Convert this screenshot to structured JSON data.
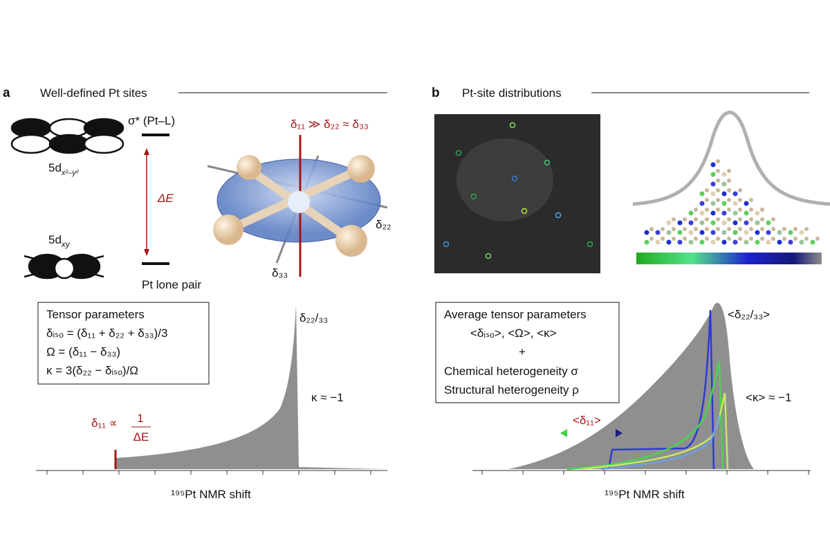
{
  "panel_a": {
    "label": "a",
    "title": "Well-defined Pt sites",
    "sigma_star": "σ* (Pt–L)",
    "orbital_upper": {
      "main": "5d",
      "sub": "x²–y²"
    },
    "orbital_lower": {
      "main": "5d",
      "sub": "xy"
    },
    "delta_e": "ΔE",
    "lone_pair": "Pt lone pair",
    "anisotropy": "δ₁₁ ≫ δ₂₂ ≈ δ₃₃",
    "axis_d22": "δ₂₂",
    "axis_d33": "δ₃₃",
    "box": {
      "title": "Tensor parameters",
      "lines": [
        "δᵢₛₒ = (δ₁₁ + δ₂₂ + δ₃₃)/3",
        "Ω = (δ₁₁ − δ₃₃)",
        "κ = 3(δ₂₂ − δᵢₛₒ)/Ω"
      ]
    },
    "peak_label": "δ₂₂/₃₃",
    "kappa": "κ ≈ −1",
    "d11_label": "δ₁₁ ∝",
    "frac_num": "1",
    "frac_den": "ΔE",
    "x_label": "¹⁹⁵Pt NMR shift"
  },
  "panel_b": {
    "label": "b",
    "title": "Pt-site distributions",
    "box": {
      "title": "Average tensor parameters",
      "lines": [
        "<δᵢₛₒ>, <Ω>, <κ>",
        "+",
        "Chemical heterogeneity  σ",
        "Structural heterogeneity  ρ"
      ]
    },
    "peak_label": "<δ₂₂/₃₃>",
    "kappa": "<κ> ≈ −1",
    "d11_label": "<δ₁₁>",
    "x_label": "¹⁹⁵Pt NMR shift"
  }
}
